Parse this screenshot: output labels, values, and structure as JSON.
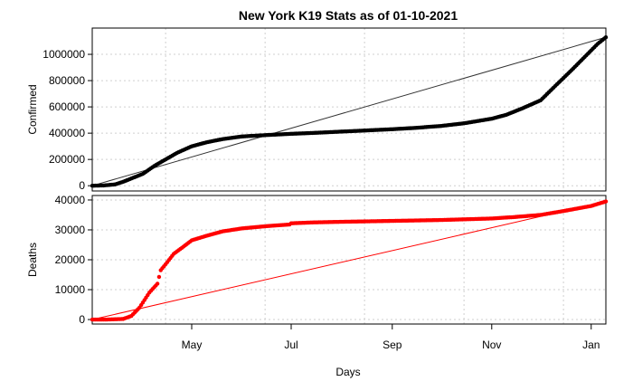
{
  "chart_data": {
    "type": "scatter",
    "title": "New York K19 Stats as of 01-10-2021",
    "xlabel": "Days",
    "x_ticks": [
      "May",
      "Jul",
      "Sep",
      "Nov",
      "Jan"
    ],
    "x_range": [
      "2020-03-01",
      "2021-01-10"
    ],
    "grid": true,
    "panels": [
      {
        "ylabel": "Confirmed",
        "ylim": [
          -40000,
          1200000
        ],
        "y_ticks": [
          "0",
          "200000",
          "400000",
          "600000",
          "800000",
          "1000000"
        ],
        "series_color": "#000000",
        "trend_color": "#333333",
        "trend": {
          "x": [
            "2020-03-01",
            "2021-01-10"
          ],
          "y": [
            0,
            1130000
          ]
        },
        "points": {
          "x": [
            "2020-03-01",
            "2020-03-08",
            "2020-03-15",
            "2020-03-20",
            "2020-03-25",
            "2020-04-01",
            "2020-04-08",
            "2020-04-15",
            "2020-04-22",
            "2020-05-01",
            "2020-05-10",
            "2020-05-20",
            "2020-06-01",
            "2020-06-15",
            "2020-07-01",
            "2020-07-15",
            "2020-08-01",
            "2020-08-15",
            "2020-09-01",
            "2020-09-15",
            "2020-10-01",
            "2020-10-15",
            "2020-11-01",
            "2020-11-10",
            "2020-11-20",
            "2020-12-01",
            "2020-12-10",
            "2020-12-20",
            "2021-01-01",
            "2021-01-05",
            "2021-01-10"
          ],
          "y": [
            0,
            2000,
            10000,
            30000,
            55000,
            90000,
            150000,
            200000,
            250000,
            300000,
            330000,
            355000,
            375000,
            385000,
            395000,
            402000,
            412000,
            420000,
            430000,
            440000,
            455000,
            475000,
            510000,
            540000,
            590000,
            650000,
            760000,
            880000,
            1030000,
            1080000,
            1130000
          ]
        }
      },
      {
        "ylabel": "Deaths",
        "ylim": [
          -1500,
          41500
        ],
        "y_ticks": [
          "0",
          "10000",
          "20000",
          "30000",
          "40000"
        ],
        "series_color": "#ff0000",
        "trend_color": "#ff0000",
        "trend": {
          "x": [
            "2020-03-01",
            "2021-01-10"
          ],
          "y": [
            0,
            39500
          ]
        },
        "points": {
          "x": [
            "2020-03-01",
            "2020-03-10",
            "2020-03-20",
            "2020-03-25",
            "2020-03-30",
            "2020-04-05",
            "2020-04-10",
            "2020-04-12",
            "2020-04-15",
            "2020-04-20",
            "2020-04-25",
            "2020-05-01",
            "2020-05-10",
            "2020-05-20",
            "2020-06-01",
            "2020-06-15",
            "2020-06-30",
            "2020-07-01",
            "2020-07-15",
            "2020-08-01",
            "2020-09-01",
            "2020-10-01",
            "2020-11-01",
            "2020-11-15",
            "2020-12-01",
            "2020-12-15",
            "2021-01-01",
            "2021-01-10"
          ],
          "y": [
            0,
            0,
            200,
            1200,
            4000,
            9000,
            12000,
            16500,
            18500,
            22000,
            24000,
            26500,
            28000,
            29500,
            30500,
            31200,
            31800,
            32200,
            32500,
            32700,
            33000,
            33300,
            33800,
            34300,
            35000,
            36300,
            38000,
            39500
          ]
        }
      }
    ]
  }
}
